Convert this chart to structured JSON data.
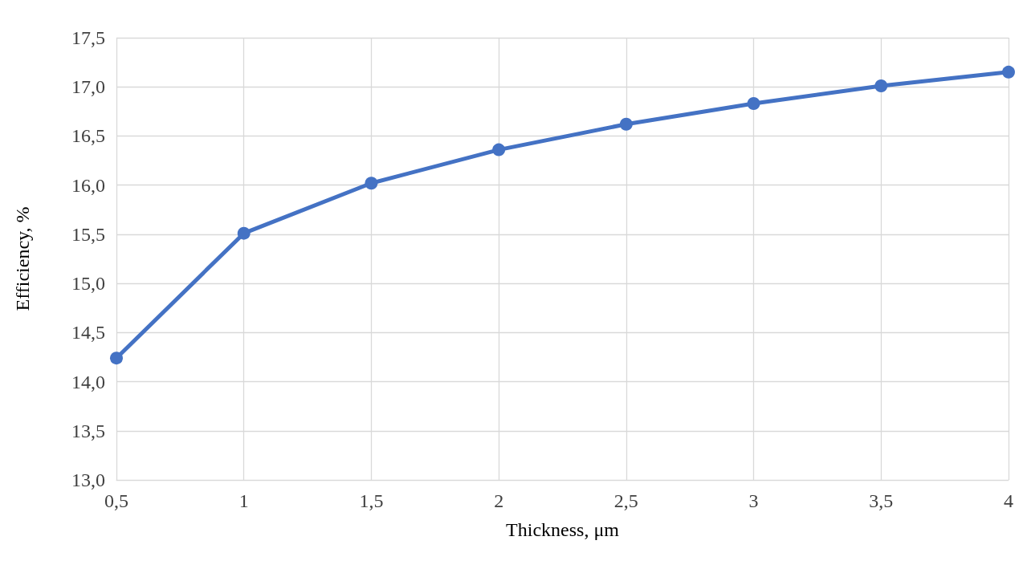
{
  "chart_data": {
    "type": "line",
    "xlabel": "Thickness, μm",
    "ylabel": "Efficiency, %",
    "x": [
      0.5,
      1,
      1.5,
      2,
      2.5,
      3,
      3.5,
      4
    ],
    "series": [
      {
        "color": "#4472c4",
        "values": [
          14.24,
          15.51,
          16.02,
          16.36,
          16.62,
          16.83,
          17.01,
          17.15
        ]
      }
    ],
    "xlim": [
      0.5,
      4
    ],
    "xticks": [
      {
        "value": 0.5,
        "label": "0,5"
      },
      1,
      {
        "value": 1.5,
        "label": "1,5"
      },
      2,
      {
        "value": 2.5,
        "label": "2,5"
      },
      3,
      {
        "value": 3.5,
        "label": "3,5"
      },
      4
    ],
    "ylim": [
      13,
      17.5
    ],
    "yticks": [
      {
        "value": 13,
        "label": "13,0"
      },
      {
        "value": 13.5,
        "label": "13,5"
      },
      {
        "value": 14,
        "label": "14,0"
      },
      {
        "value": 14.5,
        "label": "14,5"
      },
      {
        "value": 15,
        "label": "15,0"
      },
      {
        "value": 15.5,
        "label": "15,5"
      },
      {
        "value": 16,
        "label": "16,0"
      },
      {
        "value": 16.5,
        "label": "16,5"
      },
      {
        "value": 17,
        "label": "17,0"
      },
      {
        "value": 17.5,
        "label": "17,5"
      }
    ],
    "grid": true,
    "marker": "circle",
    "line_style": "solid"
  }
}
